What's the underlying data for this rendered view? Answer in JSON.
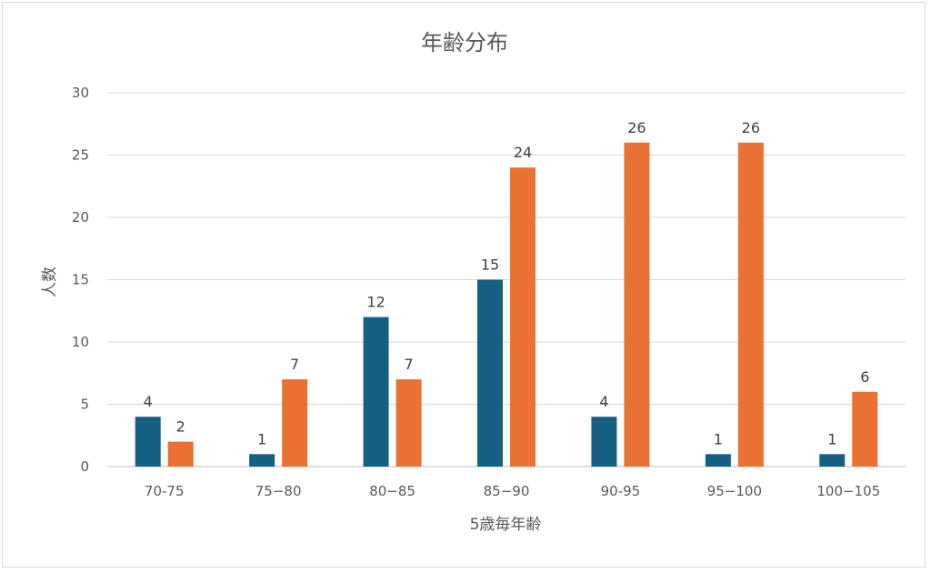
{
  "chart_data": {
    "type": "bar",
    "title": "年齢分布",
    "xlabel": "5歳毎年齢",
    "ylabel": "人数",
    "categories": [
      "70-75",
      "75−80",
      "80−85",
      "85−90",
      "90-95",
      "95−100",
      "100−105"
    ],
    "series": [
      {
        "values": [
          4,
          1,
          12,
          15,
          4,
          1,
          1
        ],
        "color": "#156082"
      },
      {
        "values": [
          2,
          7,
          7,
          24,
          26,
          26,
          6
        ],
        "color": "#E97132"
      }
    ],
    "ylim": [
      0,
      30
    ],
    "yticks": [
      0,
      5,
      10,
      15,
      20,
      25,
      30
    ],
    "grid": true,
    "legend": "none"
  }
}
